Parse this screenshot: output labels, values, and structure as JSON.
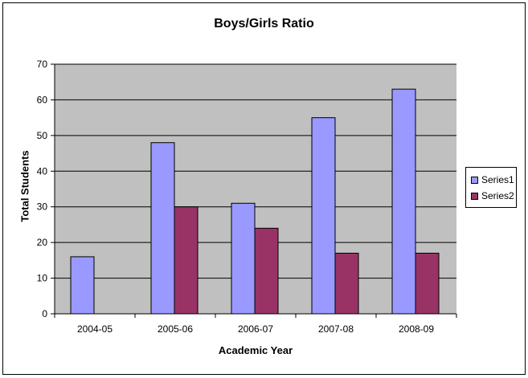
{
  "chart_data": {
    "type": "bar",
    "title": "Boys/Girls Ratio",
    "xlabel": "Academic Year",
    "ylabel": "Total Students",
    "categories": [
      "2004-05",
      "2005-06",
      "2006-07",
      "2007-08",
      "2008-09"
    ],
    "series": [
      {
        "name": "Series1",
        "values": [
          16,
          48,
          31,
          55,
          63
        ],
        "color": "#9999ff"
      },
      {
        "name": "Series2",
        "values": [
          0,
          30,
          24,
          17,
          17
        ],
        "color": "#993366"
      }
    ],
    "ylim": [
      0,
      70
    ],
    "yticks": [
      "0",
      "10",
      "20",
      "30",
      "40",
      "50",
      "60",
      "70"
    ],
    "grid": true,
    "plot_background": "#c0c0c0",
    "legend_position": "right"
  }
}
